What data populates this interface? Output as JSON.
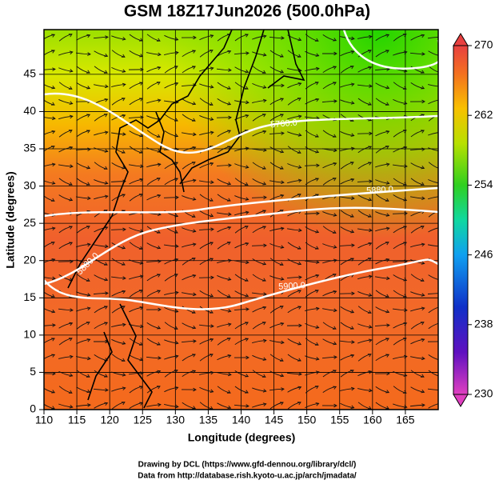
{
  "title": "GSM 18Z17Jun2026 (500.0hPa)",
  "x_axis": {
    "label": "Longitude (degrees)",
    "xlim": [
      110,
      170
    ],
    "ticks": [
      110,
      115,
      120,
      125,
      130,
      135,
      140,
      145,
      150,
      155,
      160,
      165
    ]
  },
  "y_axis": {
    "label": "Latitude  (degrees)",
    "ylim": [
      0,
      51
    ],
    "ticks": [
      0,
      5,
      10,
      15,
      20,
      25,
      30,
      35,
      40,
      45
    ]
  },
  "colorbar": {
    "lim": [
      230,
      270
    ],
    "ticks": [
      230,
      238,
      246,
      254,
      262,
      270
    ]
  },
  "contour_labels": [
    "5760.0",
    "5880.0",
    "5900.0",
    "5880.0"
  ],
  "footer": [
    "Drawing by DCL (https://www.gfd-dennou.org/library/dcl/)",
    "Data from http://database.rish.kyoto-u.ac.jp/arch/jmadata/"
  ]
}
